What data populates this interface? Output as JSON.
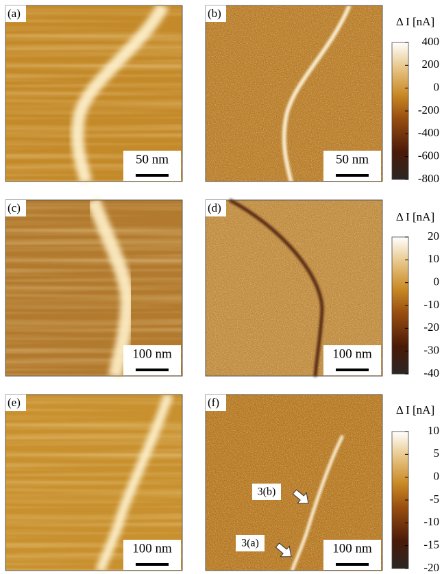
{
  "panels": [
    {
      "label": "(a)",
      "scale_bar": "50 nm"
    },
    {
      "label": "(b)",
      "scale_bar": "50 nm"
    },
    {
      "label": "(c)",
      "scale_bar": "100 nm"
    },
    {
      "label": "(d)",
      "scale_bar": "100 nm"
    },
    {
      "label": "(e)",
      "scale_bar": "100 nm"
    },
    {
      "label": "(f)",
      "scale_bar": "100 nm"
    }
  ],
  "colorbars": [
    {
      "title": "Δ I [nA]",
      "ticks": [
        400,
        200,
        0,
        -200,
        -400,
        -600,
        -800
      ]
    },
    {
      "title": "Δ I [nA]",
      "ticks": [
        20,
        10,
        0,
        -10,
        -20,
        -30,
        -40
      ]
    },
    {
      "title": "Δ I [nA]",
      "ticks": [
        10,
        5,
        0,
        -5,
        -10,
        -15,
        -20
      ]
    }
  ],
  "annotations": [
    "3(b)",
    "3(a)"
  ]
}
